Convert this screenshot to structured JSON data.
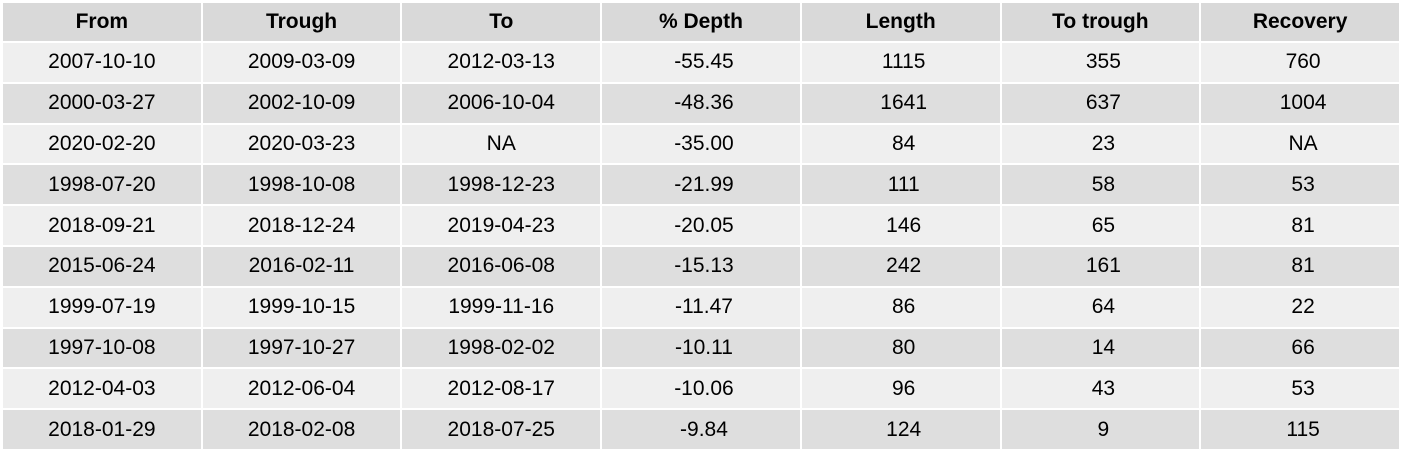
{
  "table": {
    "headers": [
      "From",
      "Trough",
      "To",
      "% Depth",
      "Length",
      "To trough",
      "Recovery"
    ],
    "rows": [
      [
        "2007-10-10",
        "2009-03-09",
        "2012-03-13",
        "-55.45",
        "1115",
        "355",
        "760"
      ],
      [
        "2000-03-27",
        "2002-10-09",
        "2006-10-04",
        "-48.36",
        "1641",
        "637",
        "1004"
      ],
      [
        "2020-02-20",
        "2020-03-23",
        "NA",
        "-35.00",
        "84",
        "23",
        "NA"
      ],
      [
        "1998-07-20",
        "1998-10-08",
        "1998-12-23",
        "-21.99",
        "111",
        "58",
        "53"
      ],
      [
        "2018-09-21",
        "2018-12-24",
        "2019-04-23",
        "-20.05",
        "146",
        "65",
        "81"
      ],
      [
        "2015-06-24",
        "2016-02-11",
        "2016-06-08",
        "-15.13",
        "242",
        "161",
        "81"
      ],
      [
        "1999-07-19",
        "1999-10-15",
        "1999-11-16",
        "-11.47",
        "86",
        "64",
        "22"
      ],
      [
        "1997-10-08",
        "1997-10-27",
        "1998-02-02",
        "-10.11",
        "80",
        "14",
        "66"
      ],
      [
        "2012-04-03",
        "2012-06-04",
        "2012-08-17",
        "-10.06",
        "96",
        "43",
        "53"
      ],
      [
        "2018-01-29",
        "2018-02-08",
        "2018-07-25",
        "-9.84",
        "124",
        "9",
        "115"
      ]
    ]
  }
}
